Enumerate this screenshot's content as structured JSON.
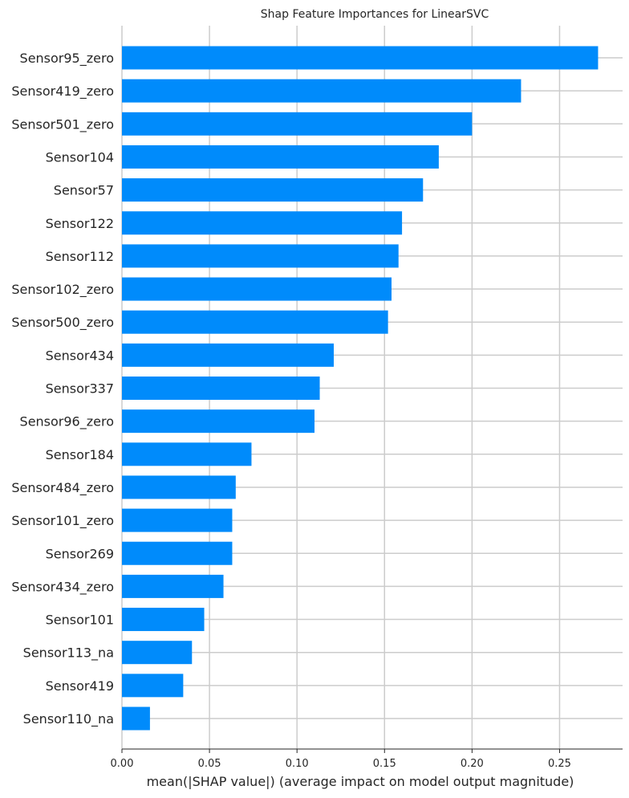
{
  "chart_data": {
    "type": "bar",
    "orientation": "horizontal",
    "title": "Shap Feature Importances for LinearSVC",
    "xlabel": "mean(|SHAP value|) (average impact on model output magnitude)",
    "ylabel": "",
    "xlim": [
      0,
      0.286
    ],
    "xticks": [
      0.0,
      0.05,
      0.1,
      0.15,
      0.2,
      0.25
    ],
    "xtick_labels": [
      "0.00",
      "0.05",
      "0.10",
      "0.15",
      "0.20",
      "0.25"
    ],
    "grid": true,
    "bar_color": "#008bfb",
    "categories": [
      "Sensor95_zero",
      "Sensor419_zero",
      "Sensor501_zero",
      "Sensor104",
      "Sensor57",
      "Sensor122",
      "Sensor112",
      "Sensor102_zero",
      "Sensor500_zero",
      "Sensor434",
      "Sensor337",
      "Sensor96_zero",
      "Sensor184",
      "Sensor484_zero",
      "Sensor101_zero",
      "Sensor269",
      "Sensor434_zero",
      "Sensor101",
      "Sensor113_na",
      "Sensor419",
      "Sensor110_na"
    ],
    "values": [
      0.272,
      0.228,
      0.2,
      0.181,
      0.172,
      0.16,
      0.158,
      0.154,
      0.152,
      0.121,
      0.113,
      0.11,
      0.074,
      0.065,
      0.063,
      0.063,
      0.058,
      0.047,
      0.04,
      0.035,
      0.016
    ]
  }
}
